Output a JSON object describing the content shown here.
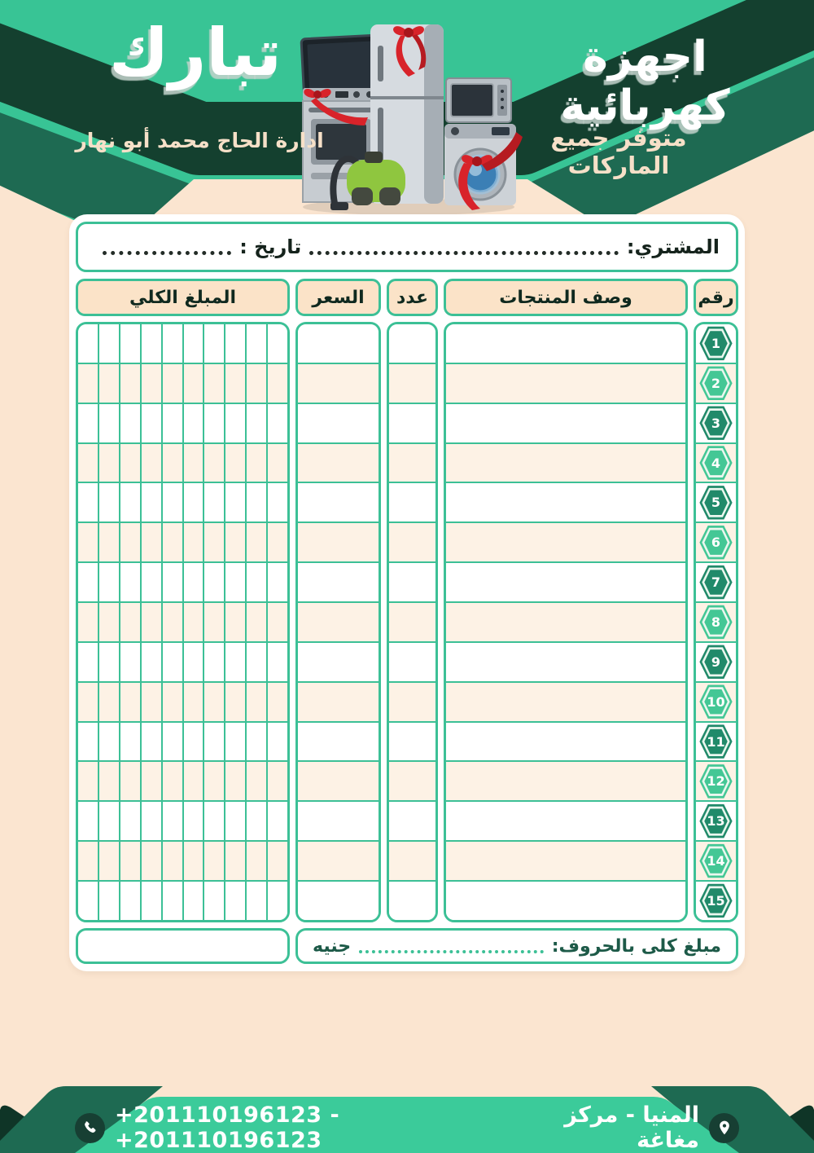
{
  "header": {
    "shop_name": "تبارك",
    "headline": "اجهزة كهربائية",
    "availability_line": "متوفر جميع الماركات",
    "management_line": "ادارة الحاج محمد أبو نهار"
  },
  "buyer_bar": {
    "buyer_label": "المشتري:",
    "date_label": "تاريخ :"
  },
  "table": {
    "headers": {
      "total": "المبلغ الكلي",
      "price": "السعر",
      "qty": "عدد",
      "description": "وصف المنتجات",
      "number": "رقم"
    },
    "row_numbers": [
      1,
      2,
      3,
      4,
      5,
      6,
      7,
      8,
      9,
      10,
      11,
      12,
      13,
      14,
      15
    ],
    "grid_cells_per_row": 10
  },
  "summary": {
    "amount_in_words_label": "مبلغ كلى بالحروف:",
    "currency": "جنيه"
  },
  "footer": {
    "phones": "+201110196123 - +201110196123",
    "location": "المنيا - مركز مغاغة"
  },
  "icons": {
    "phone": "phone-handset",
    "location": "map-pin"
  },
  "colors": {
    "teal": "#38c495",
    "footer_teal": "#3bcb9a",
    "dark_green": "#14402f",
    "deep_green": "#0f3527",
    "medium_green": "#1e6a52",
    "cream": "#fbe5d0",
    "row_cream": "#fdf2e5",
    "header_cell_cream": "#fbe3c8",
    "border_teal": "#3cc096",
    "hex_dark": "#218a6a",
    "hex_light": "#44c795",
    "ribbon_red": "#d8232a"
  }
}
